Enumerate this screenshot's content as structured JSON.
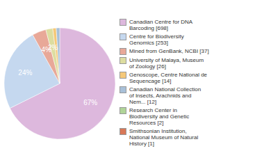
{
  "chart_data": {
    "type": "pie",
    "categories": [
      "Canadian Centre for DNA\nBarcoding [698]",
      "Centre for Biodiversity\nGenomics [253]",
      "Mined from GenBank, NCBI [37]",
      "University of Malaya, Museum\nof Zoology [26]",
      "Genoscope, Centre National de\nSequencage [14]",
      "Canadian National Collection\nof Insects, Arachnids and\nNem... [12]",
      "Research Center in\nBiodiversity and Genetic\nResources [2]",
      "Smithsonian Institution,\nNational Museum of Natural\nHistory [1]"
    ],
    "values": [
      67,
      24,
      4,
      2,
      1,
      1,
      0,
      0
    ],
    "value_labels": [
      "67%",
      "24%",
      "4%",
      "2%",
      null,
      null,
      null,
      null
    ],
    "colors": [
      "#ddb8dd",
      "#c5d8ef",
      "#e8a898",
      "#dddda0",
      "#f5c878",
      "#a8c0d8",
      "#b0d498",
      "#d87858"
    ],
    "data_labels": true,
    "legend": "right"
  }
}
